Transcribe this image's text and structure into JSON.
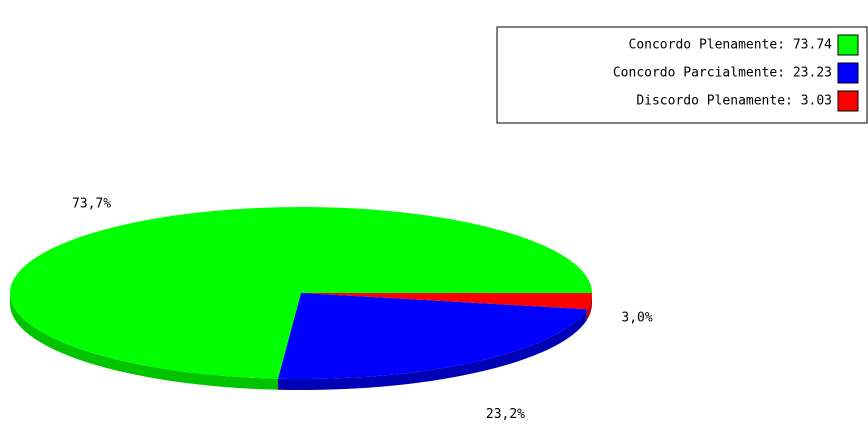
{
  "chart_data": {
    "type": "pie",
    "categories": [
      "Concordo Plenamente: 73.74",
      "Concordo Parcialmente: 23.23",
      "Discordo Plenamente: 3.03"
    ],
    "values": [
      73.74,
      23.23,
      3.03
    ],
    "value_labels": [
      "73,7%",
      "23,2%",
      "3,0%"
    ],
    "colors": [
      "#00ff00",
      "#0000ff",
      "#ff0000"
    ],
    "side_colors": [
      "#00c400",
      "#0000b4",
      "#c40000"
    ],
    "legend": "top-right"
  }
}
